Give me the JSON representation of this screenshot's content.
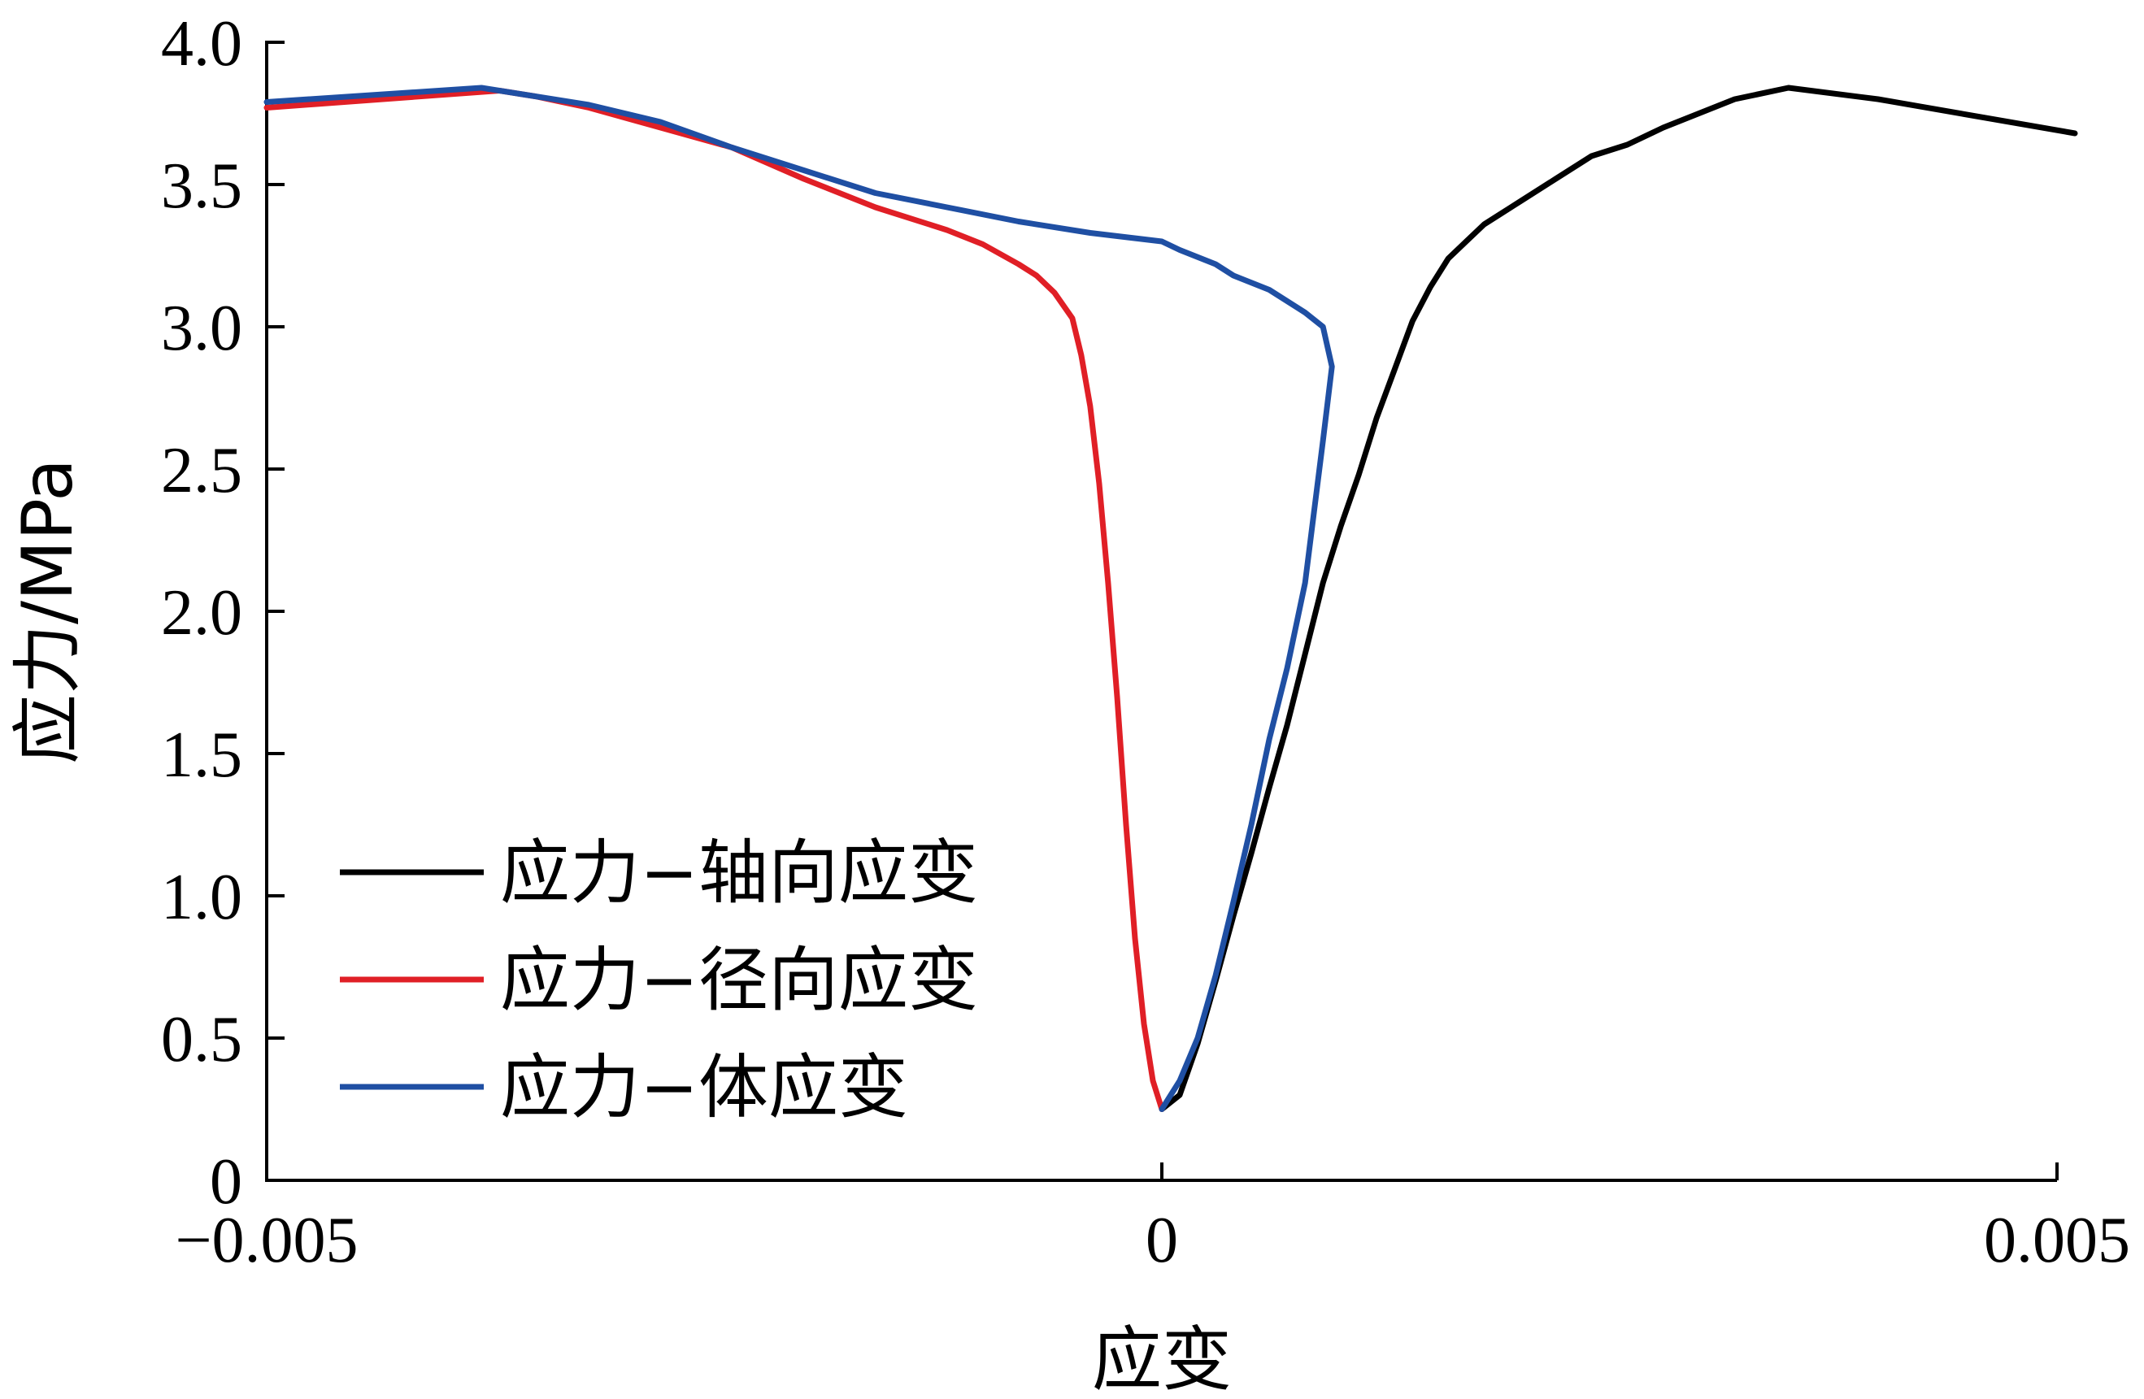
{
  "chart_data": {
    "type": "line",
    "title": "",
    "xlabel": "应变",
    "ylabel": "应力/MPa",
    "xlim": [
      -0.005,
      0.005
    ],
    "ylim": [
      0,
      4.0
    ],
    "x_ticks": [
      -0.005,
      0,
      0.005
    ],
    "x_tick_labels": [
      "−0.005",
      "0",
      "0.005"
    ],
    "y_ticks": [
      0,
      0.5,
      1.0,
      1.5,
      2.0,
      2.5,
      3.0,
      3.5,
      4.0
    ],
    "y_tick_labels": [
      "0",
      "0.5",
      "1.0",
      "1.5",
      "2.0",
      "2.5",
      "3.0",
      "3.5",
      "4.0"
    ],
    "grid": false,
    "legend_position": "bottom-left",
    "series": [
      {
        "name": "应力−轴向应变",
        "color": "#000000",
        "x": [
          0.0,
          0.0001,
          0.0002,
          0.0003,
          0.0004,
          0.0005,
          0.0006,
          0.0007,
          0.0008,
          0.0009,
          0.001,
          0.0011,
          0.0012,
          0.0013,
          0.0014,
          0.0015,
          0.0016,
          0.0017,
          0.0018,
          0.0019,
          0.002,
          0.0022,
          0.0024,
          0.0026,
          0.0028,
          0.003,
          0.0032,
          0.0035,
          0.004,
          0.0051
        ],
        "y": [
          0.25,
          0.3,
          0.48,
          0.7,
          0.93,
          1.15,
          1.38,
          1.6,
          1.85,
          2.1,
          2.3,
          2.48,
          2.68,
          2.85,
          3.02,
          3.14,
          3.24,
          3.3,
          3.36,
          3.4,
          3.44,
          3.52,
          3.6,
          3.64,
          3.7,
          3.75,
          3.8,
          3.84,
          3.8,
          3.68
        ]
      },
      {
        "name": "应力−径向应变",
        "color": "#e01f26",
        "x": [
          -0.005,
          -0.0037,
          -0.0035,
          -0.0032,
          -0.0028,
          -0.0024,
          -0.002,
          -0.0016,
          -0.0012,
          -0.001,
          -0.0008,
          -0.0007,
          -0.0006,
          -0.0005,
          -0.00045,
          -0.0004,
          -0.00035,
          -0.0003,
          -0.00025,
          -0.0002,
          -0.00015,
          -0.0001,
          -5e-05,
          0.0
        ],
        "y": [
          3.77,
          3.83,
          3.81,
          3.77,
          3.7,
          3.63,
          3.52,
          3.42,
          3.34,
          3.29,
          3.22,
          3.18,
          3.12,
          3.03,
          2.9,
          2.72,
          2.45,
          2.1,
          1.7,
          1.25,
          0.85,
          0.55,
          0.35,
          0.25
        ]
      },
      {
        "name": "应力−体应变",
        "color": "#1f4fa3",
        "x": [
          -0.005,
          -0.0038,
          -0.0036,
          -0.0032,
          -0.0028,
          -0.0024,
          -0.002,
          -0.0016,
          -0.0012,
          -0.0008,
          -0.0004,
          0.0,
          0.0001,
          0.0003,
          0.0004,
          0.0006,
          0.0008,
          0.0009,
          0.00095,
          0.0009,
          0.00085,
          0.0008,
          0.0007,
          0.0006,
          0.0005,
          0.0004,
          0.0003,
          0.0002,
          0.0001,
          0.0
        ],
        "y": [
          3.79,
          3.84,
          3.82,
          3.78,
          3.72,
          3.63,
          3.55,
          3.47,
          3.42,
          3.37,
          3.33,
          3.3,
          3.27,
          3.22,
          3.18,
          3.13,
          3.05,
          3.0,
          2.86,
          2.6,
          2.35,
          2.1,
          1.8,
          1.55,
          1.25,
          0.98,
          0.72,
          0.5,
          0.35,
          0.25
        ]
      }
    ]
  }
}
